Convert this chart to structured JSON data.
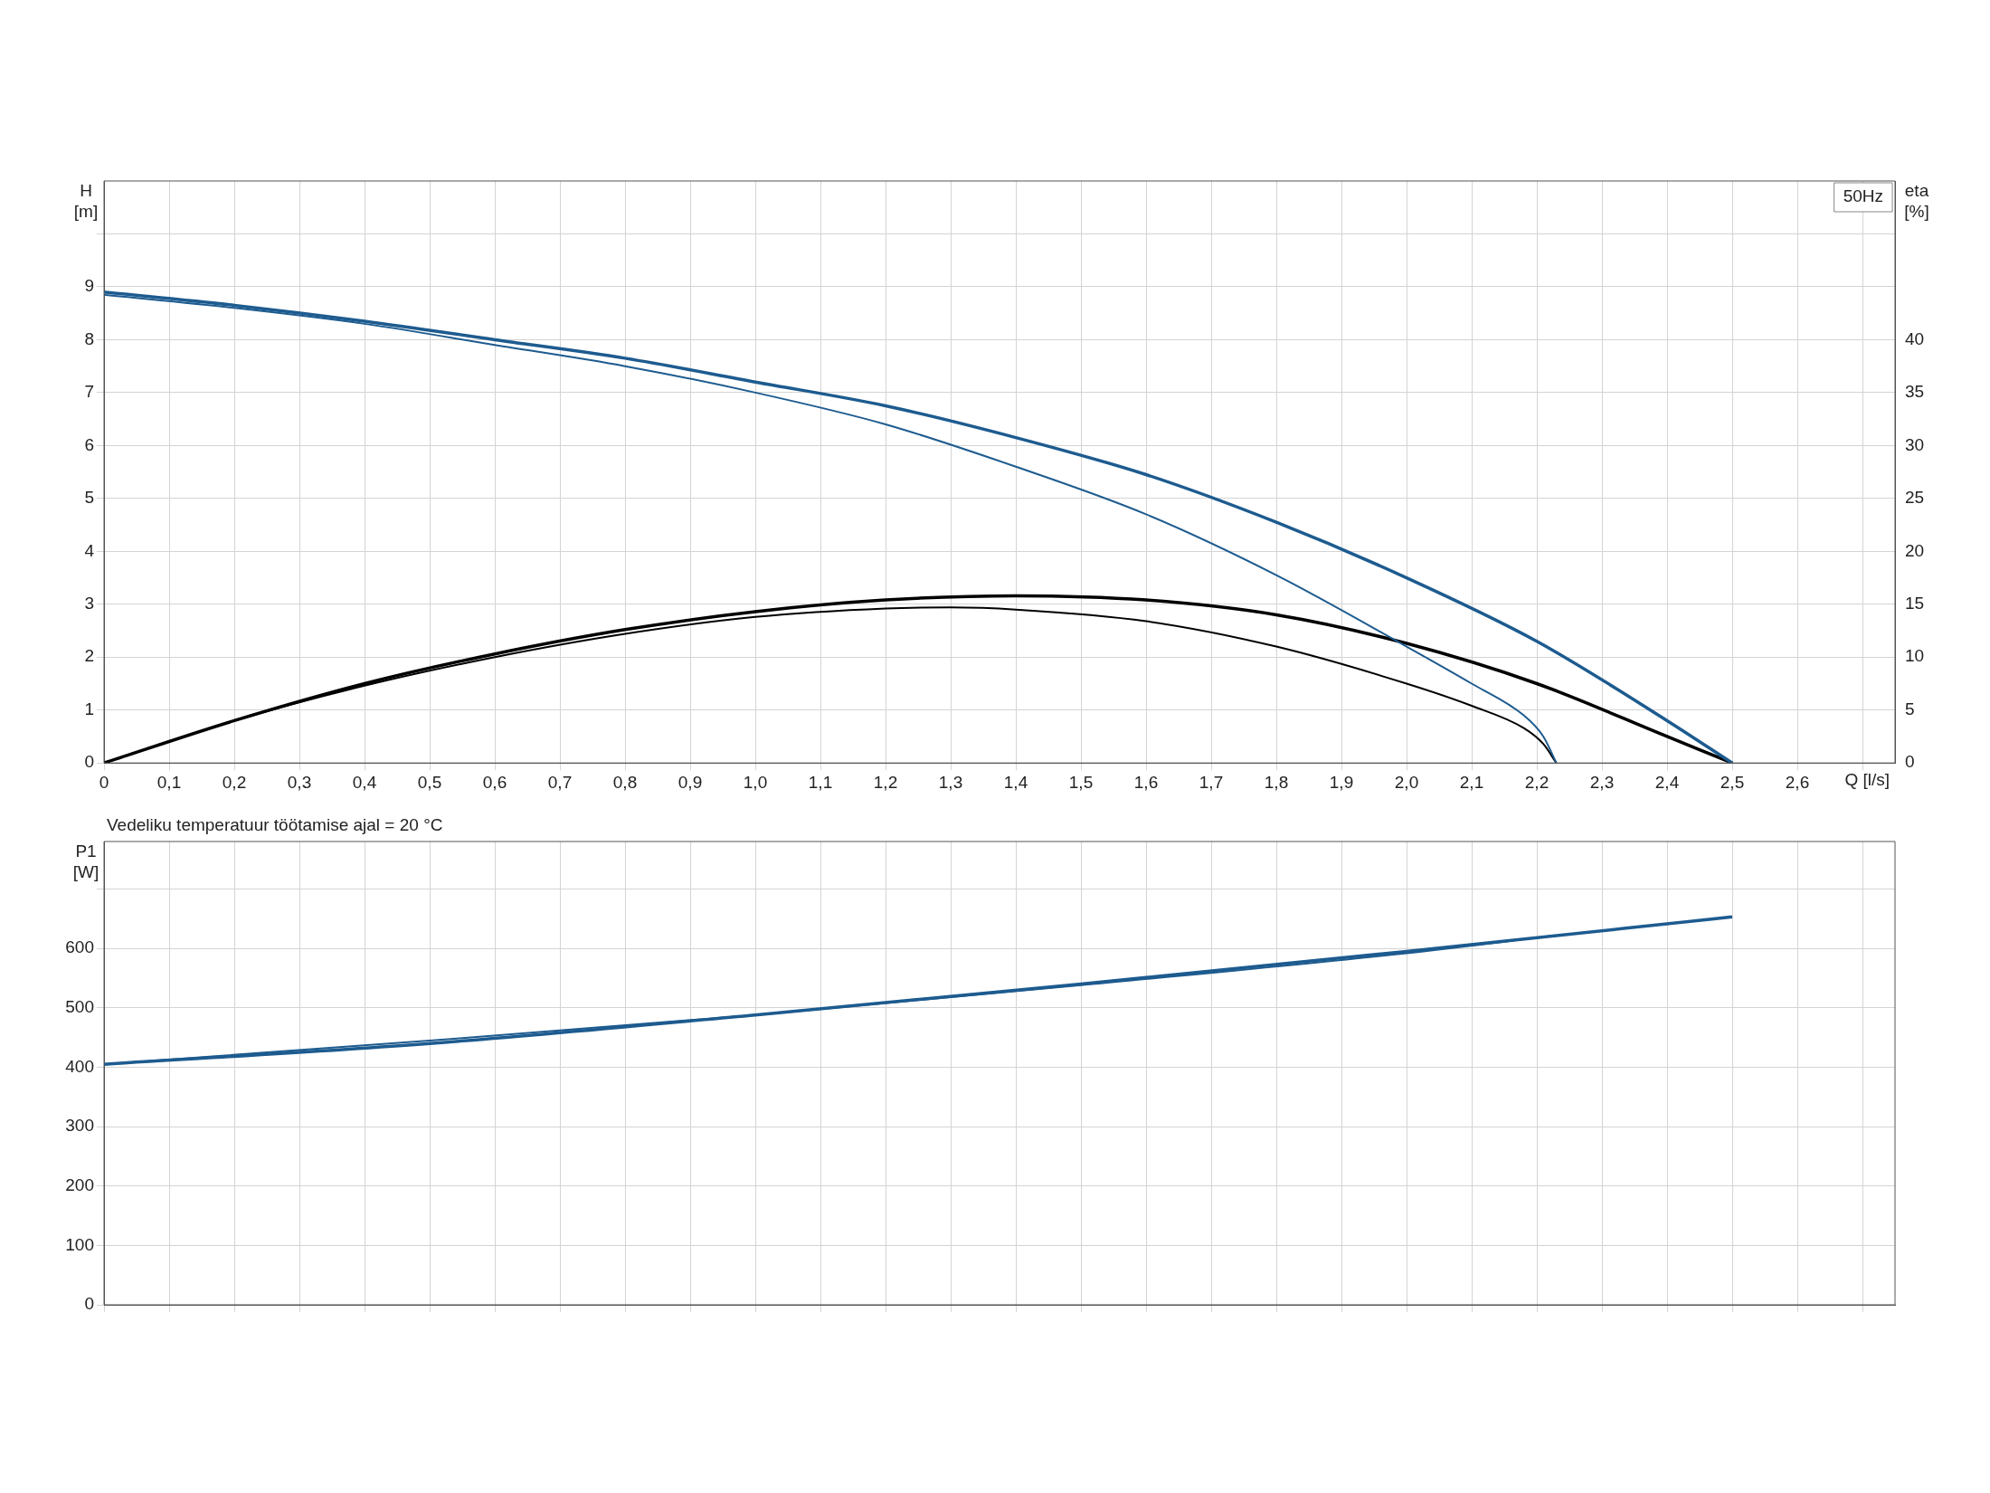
{
  "chart_data": [
    {
      "type": "line",
      "xlabel": "Q [l/s]",
      "ylabel": "H [m]",
      "y2label": "eta [%]",
      "annotations": [
        "50Hz"
      ],
      "xlim": [
        0,
        2.75
      ],
      "xticks": [
        0,
        {
          "value": 0.1,
          "label": "0,1"
        },
        {
          "value": 0.2,
          "label": "0,2"
        },
        {
          "value": 0.3,
          "label": "0,3"
        },
        {
          "value": 0.4,
          "label": "0,4"
        },
        {
          "value": 0.5,
          "label": "0,5"
        },
        {
          "value": 0.6,
          "label": "0,6"
        },
        {
          "value": 0.7,
          "label": "0,7"
        },
        {
          "value": 0.8,
          "label": "0,8"
        },
        {
          "value": 0.9,
          "label": "0,9"
        },
        {
          "value": 1.0,
          "label": "1,0"
        },
        {
          "value": 1.1,
          "label": "1,1"
        },
        {
          "value": 1.2,
          "label": "1,2"
        },
        {
          "value": 1.3,
          "label": "1,3"
        },
        {
          "value": 1.4,
          "label": "1,4"
        },
        {
          "value": 1.5,
          "label": "1,5"
        },
        {
          "value": 1.6,
          "label": "1,6"
        },
        {
          "value": 1.7,
          "label": "1,7"
        },
        {
          "value": 1.8,
          "label": "1,8"
        },
        {
          "value": 1.9,
          "label": "1,9"
        },
        {
          "value": 2.0,
          "label": "2,0"
        },
        {
          "value": 2.1,
          "label": "2,1"
        },
        {
          "value": 2.2,
          "label": "2,2"
        },
        {
          "value": 2.3,
          "label": "2,3"
        },
        {
          "value": 2.4,
          "label": "2,4"
        },
        {
          "value": 2.5,
          "label": "2,5"
        },
        {
          "value": 2.6,
          "label": "2,6"
        },
        {
          "value": 2.7,
          "label": null
        }
      ],
      "ylim": [
        0,
        11
      ],
      "yticks": [
        0,
        1,
        2,
        3,
        4,
        5,
        6,
        7,
        8,
        9,
        {
          "value": 10,
          "label": null
        }
      ],
      "y2lim": [
        0,
        55
      ],
      "y2ticks": [
        0,
        5,
        10,
        15,
        20,
        25,
        30,
        35,
        40
      ],
      "grid": true,
      "legend": false,
      "marker": "none",
      "line_style": "solid",
      "series": [
        {
          "color": "#1d5b8f",
          "x": [
            0,
            0.2,
            0.4,
            0.6,
            0.8,
            1.0,
            1.2,
            1.4,
            1.6,
            1.8,
            2.0,
            2.2,
            2.4,
            2.5
          ],
          "values": [
            8.9,
            8.65,
            8.35,
            8.0,
            7.65,
            7.2,
            6.75,
            6.15,
            5.45,
            4.55,
            3.5,
            2.3,
            0.8,
            0
          ]
        },
        {
          "color": "#1d5b8f",
          "x": [
            0,
            0.2,
            0.4,
            0.6,
            0.8,
            1.0,
            1.2,
            1.4,
            1.6,
            1.8,
            2.0,
            2.1,
            2.18,
            2.21,
            2.23
          ],
          "values": [
            8.85,
            8.6,
            8.3,
            7.9,
            7.5,
            7.0,
            6.4,
            5.6,
            4.7,
            3.55,
            2.2,
            1.5,
            0.9,
            0.5,
            0
          ]
        },
        {
          "color": "#000000",
          "axis": "y2",
          "x": [
            0,
            0.2,
            0.4,
            0.6,
            0.8,
            1.0,
            1.2,
            1.4,
            1.6,
            1.8,
            2.0,
            2.2,
            2.4,
            2.5
          ],
          "values": [
            0,
            4,
            7.5,
            10.3,
            12.6,
            14.3,
            15.4,
            15.8,
            15.4,
            14,
            11.3,
            7.5,
            2.5,
            0
          ]
        },
        {
          "color": "#000000",
          "axis": "y2",
          "x": [
            0,
            0.2,
            0.4,
            0.6,
            0.8,
            1.0,
            1.2,
            1.3,
            1.4,
            1.6,
            1.8,
            2.0,
            2.1,
            2.18,
            2.21,
            2.23
          ],
          "values": [
            0,
            4,
            7.3,
            10,
            12.2,
            13.8,
            14.6,
            14.7,
            14.5,
            13.4,
            11,
            7.5,
            5.4,
            3.3,
            1.8,
            0
          ]
        }
      ]
    },
    {
      "type": "line",
      "title": "Vedeliku temperatuur töötamise ajal = 20 °C",
      "ylabel": "P1 [W]",
      "xlim": [
        0,
        2.75
      ],
      "xticks": [
        0,
        0.1,
        0.2,
        0.3,
        0.4,
        0.5,
        0.6,
        0.7,
        0.8,
        0.9,
        1.0,
        1.1,
        1.2,
        1.3,
        1.4,
        1.5,
        1.6,
        1.7,
        1.8,
        1.9,
        2.0,
        2.1,
        2.2,
        2.3,
        2.4,
        2.5,
        2.6,
        2.7
      ],
      "ylim": [
        0,
        780
      ],
      "yticks": [
        0,
        100,
        200,
        300,
        400,
        500,
        600,
        {
          "value": 700,
          "label": null
        }
      ],
      "tick_labels": "y",
      "grid": true,
      "legend": false,
      "marker": "none",
      "line_style": "solid",
      "series": [
        {
          "color": "#1d5b8f",
          "x": [
            0,
            0.5,
            1.0,
            1.5,
            2.0,
            2.5
          ],
          "values": [
            405,
            440,
            488,
            540,
            595,
            653
          ]
        },
        {
          "color": "#1d5b8f",
          "x": [
            0,
            0.5,
            1.0,
            1.5,
            2.0,
            2.23
          ],
          "values": [
            405,
            445,
            488,
            538,
            592,
            622
          ]
        }
      ]
    }
  ]
}
